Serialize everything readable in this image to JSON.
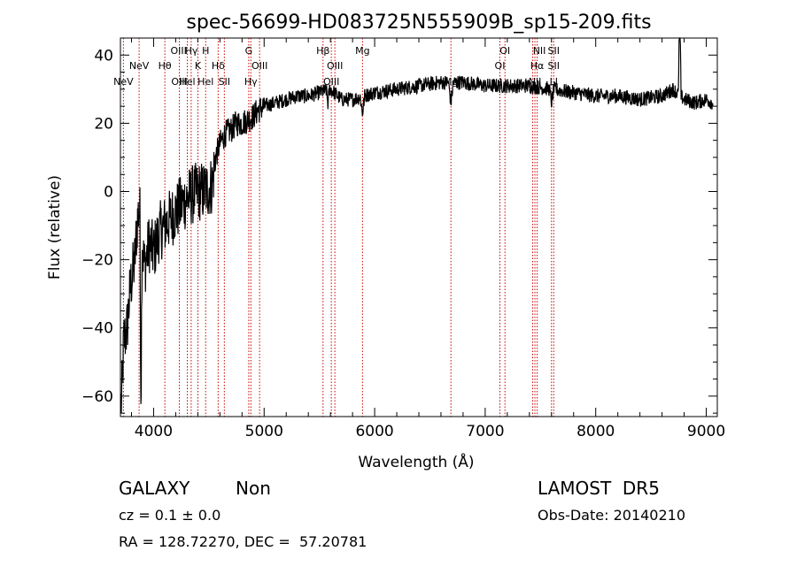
{
  "chart_data": {
    "type": "line",
    "title": "spec-56699-HD083725N555909B_sp15-209.fits",
    "xlabel": "Wavelength (Å)",
    "ylabel": "Flux (relative)",
    "xlim": [
      3700,
      9100
    ],
    "ylim": [
      -66,
      45
    ],
    "xticks": [
      4000,
      5000,
      6000,
      7000,
      8000,
      9000
    ],
    "yticks": [
      -60,
      -40,
      -20,
      0,
      20,
      40
    ],
    "grid": false,
    "line_color": "#000000",
    "marker_color": "#cc0000",
    "anchors": [
      [
        3710,
        -62
      ],
      [
        3730,
        -44
      ],
      [
        3760,
        -40
      ],
      [
        3790,
        -28
      ],
      [
        3820,
        -22
      ],
      [
        3850,
        -18
      ],
      [
        3870,
        -20
      ],
      [
        3890,
        -16
      ],
      [
        3920,
        -22
      ],
      [
        3960,
        -15
      ],
      [
        4000,
        -18
      ],
      [
        4050,
        -12
      ],
      [
        4100,
        -10
      ],
      [
        4150,
        -8
      ],
      [
        4200,
        -6
      ],
      [
        4250,
        -4
      ],
      [
        4300,
        -2
      ],
      [
        4350,
        -1
      ],
      [
        4400,
        0
      ],
      [
        4450,
        0
      ],
      [
        4500,
        1
      ],
      [
        4530,
        2
      ],
      [
        4560,
        10
      ],
      [
        4600,
        14
      ],
      [
        4650,
        17
      ],
      [
        4700,
        18
      ],
      [
        4750,
        20
      ],
      [
        4800,
        20
      ],
      [
        4850,
        21
      ],
      [
        4900,
        22
      ],
      [
        4950,
        24
      ],
      [
        5000,
        25
      ],
      [
        5100,
        26
      ],
      [
        5200,
        27
      ],
      [
        5300,
        28
      ],
      [
        5400,
        28
      ],
      [
        5500,
        29
      ],
      [
        5600,
        30
      ],
      [
        5700,
        27
      ],
      [
        5800,
        27
      ],
      [
        5900,
        28
      ],
      [
        6000,
        29
      ],
      [
        6200,
        30
      ],
      [
        6400,
        31
      ],
      [
        6600,
        32
      ],
      [
        6800,
        32
      ],
      [
        7000,
        31
      ],
      [
        7200,
        31
      ],
      [
        7400,
        31
      ],
      [
        7600,
        30
      ],
      [
        7800,
        29
      ],
      [
        8000,
        28
      ],
      [
        8200,
        28
      ],
      [
        8400,
        27
      ],
      [
        8600,
        28
      ],
      [
        8700,
        30
      ],
      [
        8800,
        27
      ],
      [
        8900,
        26
      ],
      [
        9000,
        27
      ],
      [
        9060,
        26
      ]
    ],
    "features": [
      {
        "x": 3868,
        "y": 15,
        "width": 40
      },
      {
        "x": 3886,
        "y": -55,
        "width": 10
      },
      {
        "x": 5577,
        "y": -4,
        "width": 14
      },
      {
        "x": 5890,
        "y": -5,
        "width": 20
      },
      {
        "x": 6690,
        "y": -6,
        "width": 22
      },
      {
        "x": 7600,
        "y": -4,
        "width": 20
      },
      {
        "x": 8760,
        "y": 30,
        "width": 12
      }
    ],
    "lines": [
      {
        "x": 3727,
        "label": "NeV",
        "row": 3
      },
      {
        "x": 3869,
        "label": "NeV",
        "row": 2
      },
      {
        "x": 4226,
        "label": "OIII",
        "row": 1
      },
      {
        "x": 4233,
        "label": "OIII",
        "row": 3
      },
      {
        "x": 4341,
        "label": "Hγ",
        "row": 1
      },
      {
        "x": 4102,
        "label": "Hθ",
        "row": 2
      },
      {
        "x": 4305,
        "label": "Hel",
        "row": 3
      },
      {
        "x": 4471,
        "label": "H",
        "row": 1
      },
      {
        "x": 4401,
        "label": "K",
        "row": 2
      },
      {
        "x": 4471,
        "label": "Hel",
        "row": 3
      },
      {
        "x": 4584,
        "label": "Hδ",
        "row": 2
      },
      {
        "x": 4640,
        "label": "SII",
        "row": 3
      },
      {
        "x": 4861,
        "label": "G",
        "row": 1
      },
      {
        "x": 4959,
        "label": "OIII",
        "row": 2
      },
      {
        "x": 4880,
        "label": "Hγ",
        "row": 3
      },
      {
        "x": 5533,
        "label": "Hβ",
        "row": 1
      },
      {
        "x": 5640,
        "label": "OIII",
        "row": 2
      },
      {
        "x": 5608,
        "label": "OIII",
        "row": 3
      },
      {
        "x": 5890,
        "label": "Mg",
        "row": 1
      },
      {
        "x": 6690,
        "label": "Mg",
        "row": 3
      },
      {
        "x": 7179,
        "label": "OI",
        "row": 1
      },
      {
        "x": 7133,
        "label": "OI",
        "row": 2
      },
      {
        "x": 7490,
        "label": "NII",
        "row": 1
      },
      {
        "x": 7470,
        "label": "Hα",
        "row": 2
      },
      {
        "x": 7450,
        "label": "NII",
        "row": 3
      },
      {
        "x": 7620,
        "label": "SII",
        "row": 1
      },
      {
        "x": 7620,
        "label": "SII",
        "row": 2
      },
      {
        "x": 7620,
        "label": "LI",
        "row": 3
      }
    ],
    "red_lines": [
      3727,
      3869,
      4102,
      4233,
      4305,
      4340,
      4401,
      4471,
      4584,
      4640,
      4861,
      4880,
      4959,
      5533,
      5608,
      5640,
      5890,
      6690,
      7133,
      7179,
      7430,
      7450,
      7470,
      7600,
      7620
    ]
  },
  "info": {
    "class_label": "GALAXY",
    "subclass_label": "Non",
    "survey": "LAMOST  DR5",
    "cz": "cz = 0.1 ± 0.0",
    "obs_date": "Obs-Date: 20140210",
    "coords": "RA = 128.72270, DEC =  57.20781"
  }
}
